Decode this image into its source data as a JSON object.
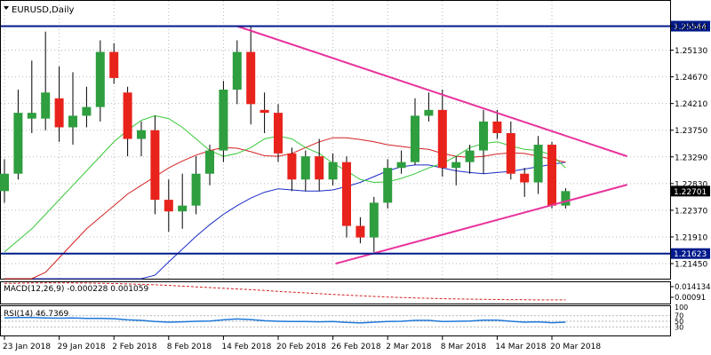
{
  "chart_data": {
    "type": "candlestick",
    "title": "EURUSD,Daily",
    "colors": {
      "bull": "#2e9e3e",
      "bear": "#e8231c",
      "frame": "#000000",
      "grid": "#b9b9b9",
      "level_line": "#001a8c",
      "trend_line": "#e8329c",
      "ma_fast": "#37c837",
      "ma_mid": "#d42020",
      "ma_slow": "#1a2cc8",
      "macd": "#d42020",
      "rsi": "#1e78d8"
    },
    "ylim": [
      1.2119,
      1.2598
    ],
    "price_ticks": [
      "1.25544",
      "1.25130",
      "1.24670",
      "1.24210",
      "1.23750",
      "1.23290",
      "1.22830",
      "1.22370",
      "1.21910",
      "1.21450"
    ],
    "current_price_label": "1.22701",
    "date_labels": [
      "23 Jan 2018",
      "29 Jan 2018",
      "2 Feb 2018",
      "8 Feb 2018",
      "14 Feb 2018",
      "20 Feb 2018",
      "26 Feb 2018",
      "2 Mar 2018",
      "8 Mar 2018",
      "14 Mar 2018",
      "20 Mar 2018"
    ],
    "date_label_candle_index": [
      0,
      4,
      8,
      12,
      16,
      20,
      24,
      28,
      32,
      36,
      40
    ],
    "candles": [
      {
        "o": 1.227,
        "h": 1.2325,
        "l": 1.225,
        "c": 1.23
      },
      {
        "o": 1.23,
        "h": 1.2445,
        "l": 1.229,
        "c": 1.2405
      },
      {
        "o": 1.2395,
        "h": 1.2495,
        "l": 1.237,
        "c": 1.2405
      },
      {
        "o": 1.2395,
        "h": 1.2545,
        "l": 1.2375,
        "c": 1.244
      },
      {
        "o": 1.243,
        "h": 1.2485,
        "l": 1.2355,
        "c": 1.238
      },
      {
        "o": 1.238,
        "h": 1.2475,
        "l": 1.235,
        "c": 1.24
      },
      {
        "o": 1.24,
        "h": 1.245,
        "l": 1.238,
        "c": 1.2415
      },
      {
        "o": 1.2415,
        "h": 1.253,
        "l": 1.239,
        "c": 1.251
      },
      {
        "o": 1.251,
        "h": 1.2525,
        "l": 1.2455,
        "c": 1.2465
      },
      {
        "o": 1.244,
        "h": 1.245,
        "l": 1.233,
        "c": 1.236
      },
      {
        "o": 1.236,
        "h": 1.239,
        "l": 1.233,
        "c": 1.2375
      },
      {
        "o": 1.2375,
        "h": 1.24,
        "l": 1.223,
        "c": 1.2255
      },
      {
        "o": 1.2255,
        "h": 1.229,
        "l": 1.22,
        "c": 1.2235
      },
      {
        "o": 1.2235,
        "h": 1.23,
        "l": 1.2205,
        "c": 1.2245
      },
      {
        "o": 1.2245,
        "h": 1.233,
        "l": 1.223,
        "c": 1.23
      },
      {
        "o": 1.23,
        "h": 1.235,
        "l": 1.228,
        "c": 1.234
      },
      {
        "o": 1.234,
        "h": 1.246,
        "l": 1.232,
        "c": 1.2445
      },
      {
        "o": 1.2445,
        "h": 1.253,
        "l": 1.242,
        "c": 1.251
      },
      {
        "o": 1.251,
        "h": 1.2555,
        "l": 1.2385,
        "c": 1.242
      },
      {
        "o": 1.241,
        "h": 1.244,
        "l": 1.237,
        "c": 1.2405
      },
      {
        "o": 1.2405,
        "h": 1.242,
        "l": 1.232,
        "c": 1.2335
      },
      {
        "o": 1.2335,
        "h": 1.2345,
        "l": 1.227,
        "c": 1.229
      },
      {
        "o": 1.229,
        "h": 1.234,
        "l": 1.227,
        "c": 1.233
      },
      {
        "o": 1.233,
        "h": 1.236,
        "l": 1.227,
        "c": 1.229
      },
      {
        "o": 1.229,
        "h": 1.2335,
        "l": 1.228,
        "c": 1.232
      },
      {
        "o": 1.232,
        "h": 1.233,
        "l": 1.219,
        "c": 1.221
      },
      {
        "o": 1.221,
        "h": 1.2225,
        "l": 1.218,
        "c": 1.219
      },
      {
        "o": 1.219,
        "h": 1.226,
        "l": 1.2165,
        "c": 1.225
      },
      {
        "o": 1.225,
        "h": 1.2325,
        "l": 1.224,
        "c": 1.231
      },
      {
        "o": 1.231,
        "h": 1.234,
        "l": 1.23,
        "c": 1.232
      },
      {
        "o": 1.232,
        "h": 1.243,
        "l": 1.2315,
        "c": 1.24
      },
      {
        "o": 1.24,
        "h": 1.244,
        "l": 1.239,
        "c": 1.241
      },
      {
        "o": 1.241,
        "h": 1.2445,
        "l": 1.2295,
        "c": 1.231
      },
      {
        "o": 1.231,
        "h": 1.233,
        "l": 1.228,
        "c": 1.232
      },
      {
        "o": 1.232,
        "h": 1.235,
        "l": 1.23,
        "c": 1.234
      },
      {
        "o": 1.234,
        "h": 1.241,
        "l": 1.23,
        "c": 1.239
      },
      {
        "o": 1.239,
        "h": 1.241,
        "l": 1.236,
        "c": 1.237
      },
      {
        "o": 1.237,
        "h": 1.239,
        "l": 1.229,
        "c": 1.23
      },
      {
        "o": 1.23,
        "h": 1.231,
        "l": 1.226,
        "c": 1.2285
      },
      {
        "o": 1.2285,
        "h": 1.2365,
        "l": 1.2265,
        "c": 1.235
      },
      {
        "o": 1.235,
        "h": 1.2355,
        "l": 1.224,
        "c": 1.2245
      },
      {
        "o": 1.2245,
        "h": 1.2275,
        "l": 1.224,
        "c": 1.227
      }
    ],
    "ma_fast": [
      1.2165,
      1.2185,
      1.2205,
      1.223,
      1.2255,
      1.228,
      1.2305,
      1.233,
      1.2355,
      1.2375,
      1.2392,
      1.24,
      1.2395,
      1.238,
      1.236,
      1.234,
      1.233,
      1.2335,
      1.2345,
      1.236,
      1.2365,
      1.236,
      1.2345,
      1.2335,
      1.2318,
      1.2305,
      1.229,
      1.2285,
      1.2286,
      1.2292,
      1.23,
      1.231,
      1.2318,
      1.233,
      1.2345,
      1.2352,
      1.2355,
      1.2348,
      1.2342,
      1.234,
      1.2332,
      1.231
    ],
    "ma_mid": [
      1.205,
      1.207,
      1.21,
      1.213,
      1.2155,
      1.218,
      1.2205,
      1.2225,
      1.2245,
      1.2265,
      1.228,
      1.2295,
      1.231,
      1.2322,
      1.2332,
      1.234,
      1.2345,
      1.2344,
      1.2338,
      1.2331,
      1.233,
      1.2335,
      1.2345,
      1.2355,
      1.2362,
      1.2362,
      1.2359,
      1.2355,
      1.235,
      1.2347,
      1.2344,
      1.2342,
      1.2335,
      1.233,
      1.2328,
      1.233,
      1.2334,
      1.2336,
      1.2335,
      1.233,
      1.2325,
      1.232
    ],
    "ma_slow": [
      1.186,
      1.188,
      1.19,
      1.1925,
      1.195,
      1.1975,
      1.2,
      1.2025,
      1.205,
      1.2075,
      1.21,
      1.2125,
      1.2148,
      1.217,
      1.2192,
      1.2212,
      1.223,
      1.2245,
      1.2258,
      1.2268,
      1.2274,
      1.2272,
      1.227,
      1.227,
      1.2272,
      1.2278,
      1.2285,
      1.2295,
      1.2305,
      1.2312,
      1.2315,
      1.2315,
      1.231,
      1.2305,
      1.2302,
      1.23,
      1.2302,
      1.2304,
      1.2308,
      1.2312,
      1.2316,
      1.232
    ],
    "levels": [
      {
        "price": 1.25544,
        "label": "1.25544"
      },
      {
        "price": 1.21623,
        "label": "1.21623"
      }
    ],
    "trendlines": [
      {
        "from": {
          "i": 17,
          "p": 1.25544
        },
        "to": {
          "i": 45.5,
          "p": 1.233
        }
      },
      {
        "from": {
          "i": 24.2,
          "p": 1.2145
        },
        "to": {
          "i": 45.5,
          "p": 1.2281
        }
      }
    ],
    "macd": {
      "label": "MACD(12,26,9) -0.000228 0.001059",
      "ticks": [
        "0.014134",
        "0.00091"
      ],
      "ylim": [
        -0.002,
        0.016
      ],
      "signal": [
        0.015,
        0.0152,
        0.0154,
        0.0155,
        0.0155,
        0.0154,
        0.0153,
        0.0151,
        0.0149,
        0.0146,
        0.0142,
        0.0138,
        0.0133,
        0.0127,
        0.0121,
        0.0115,
        0.0109,
        0.0103,
        0.0097,
        0.009,
        0.0083,
        0.0076,
        0.007,
        0.0063,
        0.0057,
        0.0051,
        0.0045,
        0.004,
        0.0035,
        0.0031,
        0.0027,
        0.0024,
        0.0021,
        0.0019,
        0.0017,
        0.0015,
        0.0014,
        0.0013,
        0.0012,
        0.0011,
        0.0011,
        0.0011
      ]
    },
    "rsi": {
      "label": "RSI(14) 46.7369",
      "ticks": [
        "100",
        "70",
        "50",
        "30"
      ],
      "levels": [
        70,
        50,
        30
      ],
      "ylim": [
        0,
        100
      ],
      "values": [
        62,
        63,
        63,
        62,
        61,
        62,
        60,
        60,
        59,
        55,
        53,
        49,
        47,
        48,
        50,
        51,
        55,
        58,
        56,
        52,
        50,
        49,
        49,
        48,
        49,
        46,
        44,
        47,
        49,
        50,
        53,
        53,
        49,
        50,
        51,
        54,
        54,
        50,
        47,
        48,
        45,
        47
      ]
    }
  }
}
